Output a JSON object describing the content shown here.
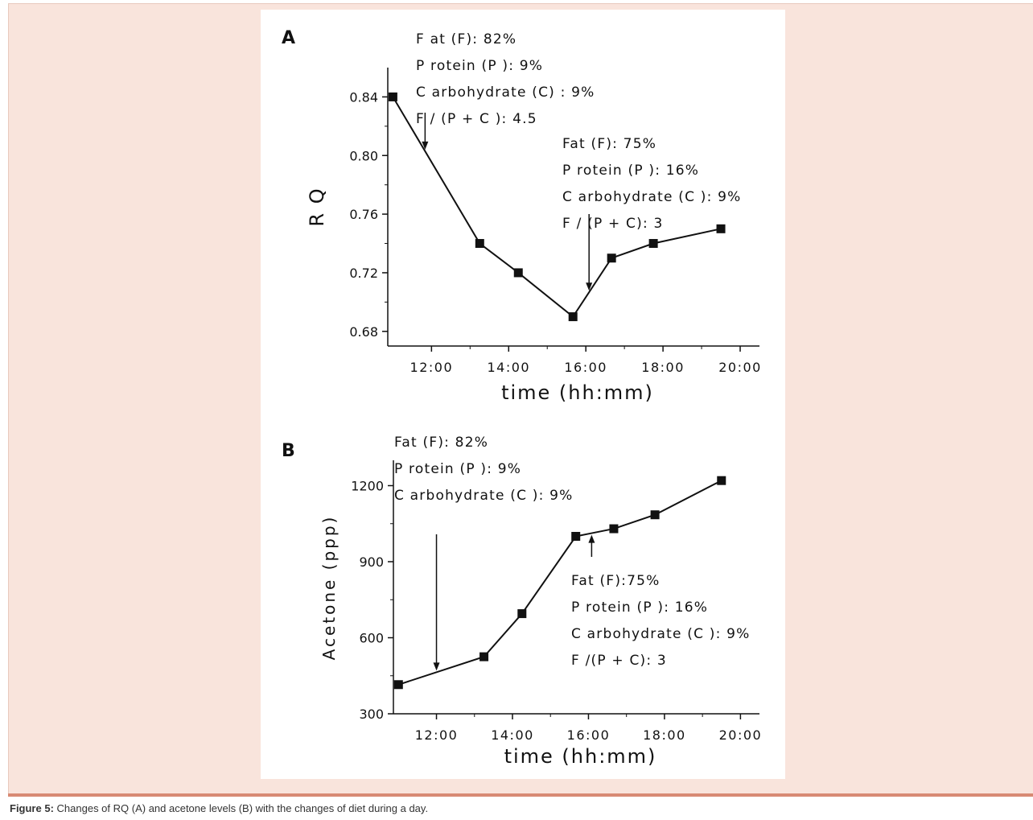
{
  "caption": {
    "label": "Figure 5:",
    "text": "Changes of RQ (A) and acetone levels (B) with the changes of diet during a day."
  },
  "colors": {
    "panel_bg": "#f9e4dc",
    "rule": "#d88a74",
    "marker": "#111111"
  },
  "chart_data": [
    {
      "panel_label": "A",
      "type": "line",
      "title": "",
      "xlabel": "time (hh:mm)",
      "ylabel": "R Q",
      "xlim": [
        "10:52",
        "20:30"
      ],
      "ylim": [
        0.67,
        0.86
      ],
      "x_tick_labels": [
        "12:00",
        "14:00",
        "16:00",
        "18:00",
        "20:00"
      ],
      "y_tick_labels": [
        "0.68",
        "0.72",
        "0.76",
        "0.80",
        "0.84"
      ],
      "series": [
        {
          "x": [
            "11:00",
            "13:15",
            "14:15",
            "15:40",
            "16:40",
            "17:45",
            "19:30"
          ],
          "values": [
            0.84,
            0.74,
            0.72,
            0.69,
            0.73,
            0.74,
            0.75
          ]
        }
      ],
      "annotations": [
        {
          "lines": [
            "F at (F): 82%",
            "P rotein (P ): 9%",
            "C arbohydrate (C) : 9%",
            "F / (P + C ): 4.5"
          ],
          "arrow_at": "11:50"
        },
        {
          "lines": [
            "Fat (F): 75%",
            "P rotein (P ): 16%",
            "C arbohydrate (C ): 9%",
            "F / (P + C): 3"
          ],
          "arrow_at": "16:05"
        }
      ]
    },
    {
      "panel_label": "B",
      "type": "line",
      "title": "",
      "xlabel": "time (hh:mm)",
      "ylabel": "Acetone (ppp)",
      "xlim": [
        "10:52",
        "20:30"
      ],
      "ylim": [
        300,
        1300
      ],
      "x_tick_labels": [
        "12:00",
        "14:00",
        "16:00",
        "18:00",
        "20:00"
      ],
      "y_tick_labels": [
        "300",
        "600",
        "900",
        "1200"
      ],
      "series": [
        {
          "x": [
            "11:00",
            "13:15",
            "14:15",
            "15:40",
            "16:40",
            "17:45",
            "19:30"
          ],
          "values": [
            415,
            525,
            695,
            1000,
            1030,
            1085,
            1220
          ]
        }
      ],
      "annotations": [
        {
          "lines": [
            "Fat (F): 82%",
            "P rotein (P ): 9%",
            "C arbohydrate (C ): 9%"
          ],
          "arrow_at": "12:00"
        },
        {
          "lines": [
            "Fat (F):75%",
            "P rotein (P ): 16%",
            "C arbohydrate (C ): 9%",
            "F /(P + C): 3"
          ],
          "arrow_at": "16:05"
        }
      ]
    }
  ]
}
